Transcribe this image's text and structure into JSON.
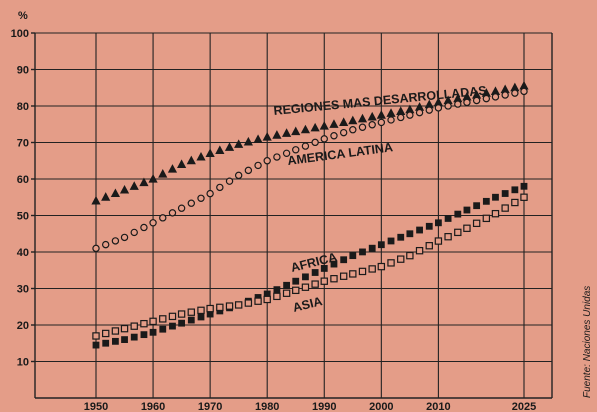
{
  "chart_data": {
    "type": "scatter",
    "ylabel": "%",
    "ylim": [
      0,
      100
    ],
    "xlim": [
      1950,
      2025
    ],
    "y_ticks": [
      10,
      20,
      30,
      40,
      50,
      60,
      70,
      80,
      90,
      100
    ],
    "x_ticks": [
      1950,
      1960,
      1970,
      1980,
      1990,
      2000,
      2010,
      2025
    ],
    "grid": true,
    "source": "Fuente: Naciones Unidas",
    "series": [
      {
        "name": "REGIONES MAS DESARROLLADAS",
        "marker": "filled-triangle",
        "x": [
          1950,
          1955,
          1960,
          1965,
          1970,
          1975,
          1980,
          1985,
          1990,
          1995,
          2000,
          2005,
          2010,
          2015,
          2020,
          2025
        ],
        "values": [
          54,
          57,
          60,
          64,
          67,
          69.5,
          71.5,
          73,
          74.5,
          76,
          77.5,
          79,
          81,
          82.5,
          84,
          85.5
        ]
      },
      {
        "name": "AMERICA LATINA",
        "marker": "open-circle",
        "x": [
          1950,
          1955,
          1960,
          1965,
          1970,
          1975,
          1980,
          1985,
          1990,
          1995,
          2000,
          2005,
          2010,
          2015,
          2020,
          2025
        ],
        "values": [
          41,
          44,
          48,
          52,
          56,
          61,
          65,
          68,
          71,
          73.5,
          75.5,
          77.5,
          79.5,
          81,
          82.5,
          84
        ]
      },
      {
        "name": "AFRICA",
        "marker": "filled-square",
        "x": [
          1950,
          1955,
          1960,
          1965,
          1970,
          1975,
          1980,
          1985,
          1990,
          1995,
          2000,
          2005,
          2010,
          2015,
          2020,
          2025
        ],
        "values": [
          14.5,
          16,
          18,
          20.5,
          23,
          25.5,
          28.5,
          32,
          35.5,
          39,
          42,
          45,
          48,
          51.5,
          55,
          58
        ]
      },
      {
        "name": "ASIA",
        "marker": "open-square",
        "x": [
          1950,
          1955,
          1960,
          1965,
          1970,
          1975,
          1980,
          1985,
          1990,
          1995,
          2000,
          2005,
          2010,
          2015,
          2020,
          2025
        ],
        "values": [
          17,
          19,
          21,
          23,
          24.5,
          25.5,
          27,
          29.5,
          32,
          34,
          36,
          39,
          43,
          46.5,
          50.5,
          55
        ]
      }
    ]
  },
  "colors": {
    "background": "#e49d88",
    "ink": "#1a1a1a"
  }
}
